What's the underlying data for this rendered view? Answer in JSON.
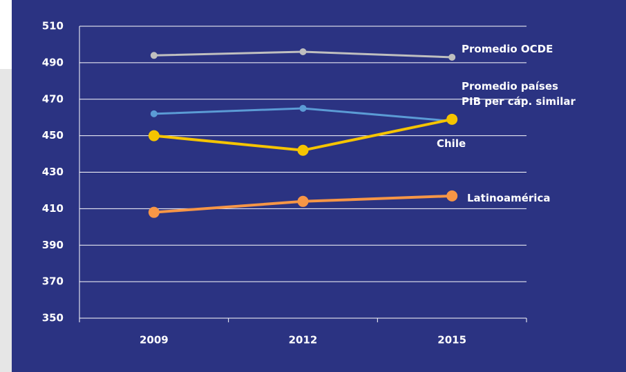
{
  "chart_data": {
    "type": "line",
    "categories": [
      "2009",
      "2012",
      "2015"
    ],
    "series": [
      {
        "name": "Promedio OCDE",
        "color": "#bfbfbf",
        "values": [
          494,
          496,
          493
        ]
      },
      {
        "name": "Promedio países PIB per cáp. similar",
        "color": "#5b9bd5",
        "values": [
          462,
          465,
          458
        ]
      },
      {
        "name": "Chile",
        "color": "#f5c400",
        "values": [
          450,
          442,
          459
        ]
      },
      {
        "name": "Latinoamérica",
        "color": "#f79646",
        "values": [
          408,
          414,
          417
        ]
      }
    ],
    "ylim": [
      350,
      510
    ],
    "yticks": [
      350,
      370,
      390,
      410,
      430,
      450,
      470,
      490,
      510
    ],
    "grid": true
  }
}
